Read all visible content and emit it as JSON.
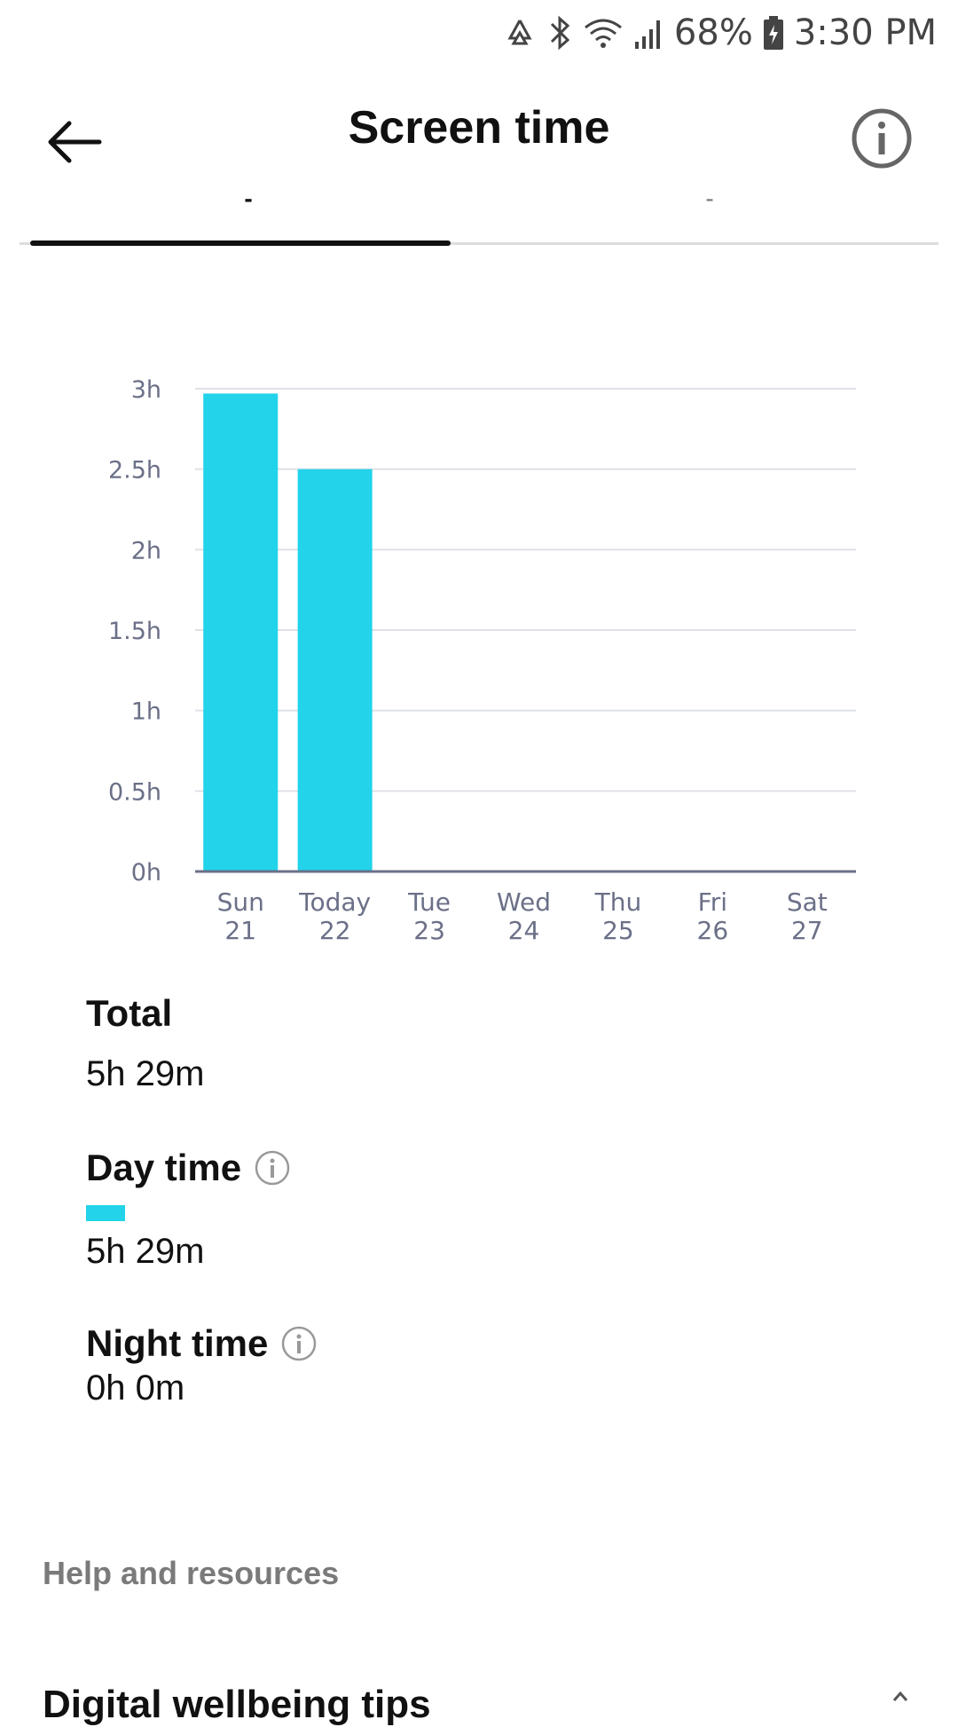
{
  "status_bar": {
    "battery": "68%",
    "time": "3:30 PM"
  },
  "header": {
    "title": "Screen time"
  },
  "tabs": [
    {
      "label": "-"
    },
    {
      "label": "-"
    }
  ],
  "chart_data": {
    "type": "bar",
    "categories": [
      "Sun 21",
      "Today 22",
      "Tue 23",
      "Wed 24",
      "Thu 25",
      "Fri 26",
      "Sat 27"
    ],
    "x_tick_lines": [
      [
        "Sun",
        "21"
      ],
      [
        "Today",
        "22"
      ],
      [
        "Tue",
        "23"
      ],
      [
        "Wed",
        "24"
      ],
      [
        "Thu",
        "25"
      ],
      [
        "Fri",
        "26"
      ],
      [
        "Sat",
        "27"
      ]
    ],
    "values": [
      2.97,
      2.5,
      0,
      0,
      0,
      0,
      0
    ],
    "ylim": [
      0,
      3
    ],
    "y_ticks": [
      0,
      0.5,
      1,
      1.5,
      2,
      2.5,
      3
    ],
    "y_tick_labels": [
      "0h",
      "0.5h",
      "1h",
      "1.5h",
      "2h",
      "2.5h",
      "3h"
    ],
    "grid": true,
    "bar_color": "#22d3ea",
    "title": "",
    "xlabel": "",
    "ylabel": ""
  },
  "stats": {
    "total_label": "Total",
    "total_value": "5h 29m",
    "day_label": "Day time",
    "day_value": "5h 29m",
    "night_label": "Night time",
    "night_value": "0h 0m"
  },
  "help": {
    "title": "Help and resources",
    "partial_item": "Digital wellbeing tips"
  }
}
